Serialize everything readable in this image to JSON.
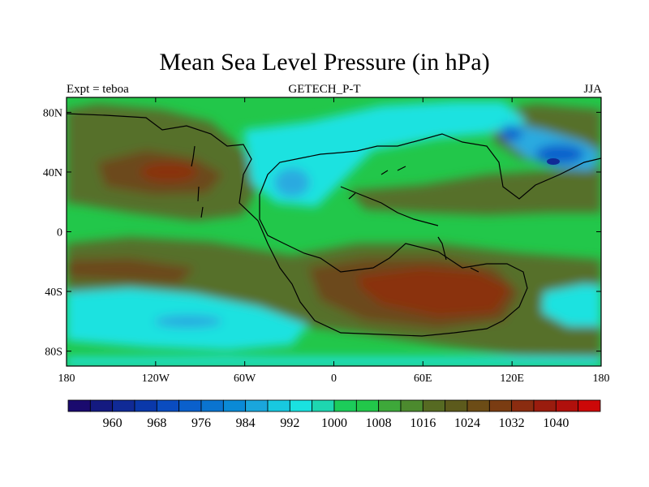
{
  "title": "Mean Sea Level Pressure (in hPa)",
  "left_label": "Expt = teboa",
  "center_label": "GETECH_P-T",
  "right_label": "JJA",
  "lon_ticks": [
    {
      "lon": -180,
      "label": "180"
    },
    {
      "lon": -120,
      "label": "120W"
    },
    {
      "lon": -60,
      "label": "60W"
    },
    {
      "lon": 0,
      "label": "0"
    },
    {
      "lon": 60,
      "label": "60E"
    },
    {
      "lon": 120,
      "label": "120E"
    },
    {
      "lon": 180,
      "label": "180"
    }
  ],
  "lat_ticks": [
    {
      "lat": 80,
      "label": "80N"
    },
    {
      "lat": 40,
      "label": "40N"
    },
    {
      "lat": 0,
      "label": "0"
    },
    {
      "lat": -40,
      "label": "40S"
    },
    {
      "lat": -80,
      "label": "80S"
    }
  ],
  "colorbar": {
    "colors": [
      "#1a0a6e",
      "#141a80",
      "#102a96",
      "#0a38aa",
      "#0a4cc0",
      "#0a60cc",
      "#0a74d0",
      "#0a8ad6",
      "#1aa6dc",
      "#18c8e0",
      "#1ae2e0",
      "#1ed6b0",
      "#1ccc5a",
      "#22c74a",
      "#3ea83a",
      "#4c8a2e",
      "#566a22",
      "#5c5a1c",
      "#6c4c16",
      "#7a3c12",
      "#8a2c10",
      "#9a1c0e",
      "#b0100c",
      "#cc0808"
    ],
    "labels": [
      {
        "index": 2,
        "text": "960"
      },
      {
        "index": 4,
        "text": "968"
      },
      {
        "index": 6,
        "text": "976"
      },
      {
        "index": 8,
        "text": "984"
      },
      {
        "index": 10,
        "text": "992"
      },
      {
        "index": 12,
        "text": "1000"
      },
      {
        "index": 14,
        "text": "1008"
      },
      {
        "index": 16,
        "text": "1016"
      },
      {
        "index": 18,
        "text": "1024"
      },
      {
        "index": 20,
        "text": "1032"
      },
      {
        "index": 22,
        "text": "1040"
      }
    ]
  },
  "field_colors": {
    "background_green": "#22c74a",
    "olive": "#56702a",
    "brown": "#6c4a1a",
    "red_brown": "#8a3010",
    "cyan": "#1ae2e0",
    "light_blue": "#2aaae0",
    "blue": "#0a60cc",
    "dark_blue": "#102a96"
  }
}
